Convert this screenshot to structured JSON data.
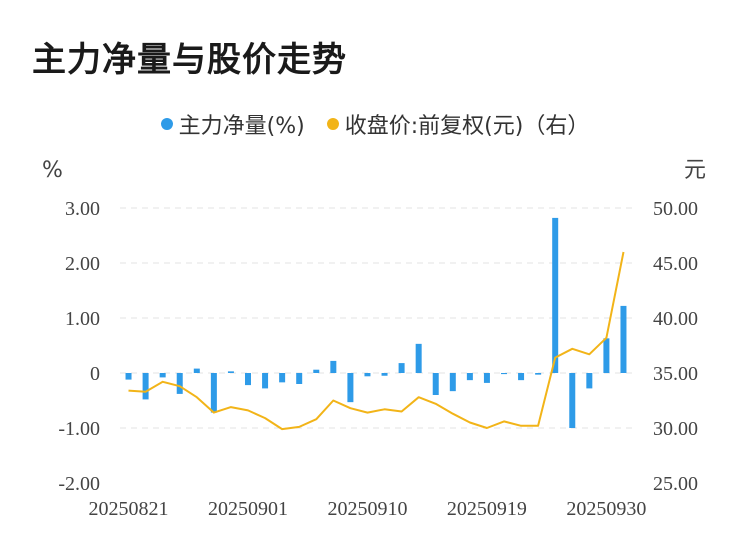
{
  "title": "主力净量与股价走势",
  "colors": {
    "bar": "#2e9be8",
    "line": "#f2b418",
    "grid": "#e3e3e3"
  },
  "chart_data": {
    "type": "bar+line",
    "left_unit": "%",
    "right_unit": "元",
    "left_ticks": [
      "3.00",
      "2.00",
      "1.00",
      "0",
      "-1.00",
      "-2.00"
    ],
    "right_ticks": [
      "50.00",
      "45.00",
      "40.00",
      "35.00",
      "30.00",
      "25.00"
    ],
    "ylim_left": [
      -2,
      3
    ],
    "ylim_right": [
      25,
      50
    ],
    "x_tick_labels": [
      "20250821",
      "20250901",
      "20250910",
      "20250919",
      "20250930"
    ],
    "x_tick_indices": [
      0,
      7,
      14,
      21,
      28
    ],
    "series": [
      {
        "name": "主力净量(%)",
        "axis": "left",
        "type": "bar",
        "values": [
          -0.12,
          -0.48,
          -0.08,
          -0.38,
          0.08,
          -0.72,
          0.03,
          -0.22,
          -0.28,
          -0.17,
          -0.2,
          0.06,
          0.22,
          -0.53,
          -0.06,
          -0.05,
          0.18,
          0.53,
          -0.4,
          -0.33,
          -0.13,
          -0.18,
          -0.02,
          -0.13,
          -0.03,
          2.82,
          -1.0,
          -0.28,
          0.63,
          1.22
        ]
      },
      {
        "name": "收盘价:前复权(元)（右）",
        "axis": "right",
        "type": "line",
        "values": [
          33.4,
          33.3,
          34.2,
          33.8,
          32.8,
          31.4,
          31.9,
          31.6,
          30.9,
          29.9,
          30.1,
          30.8,
          32.5,
          31.8,
          31.4,
          31.7,
          31.5,
          32.8,
          32.2,
          31.3,
          30.5,
          30.0,
          30.6,
          30.2,
          30.2,
          36.4,
          37.2,
          36.7,
          38.2,
          46.0
        ]
      }
    ]
  }
}
